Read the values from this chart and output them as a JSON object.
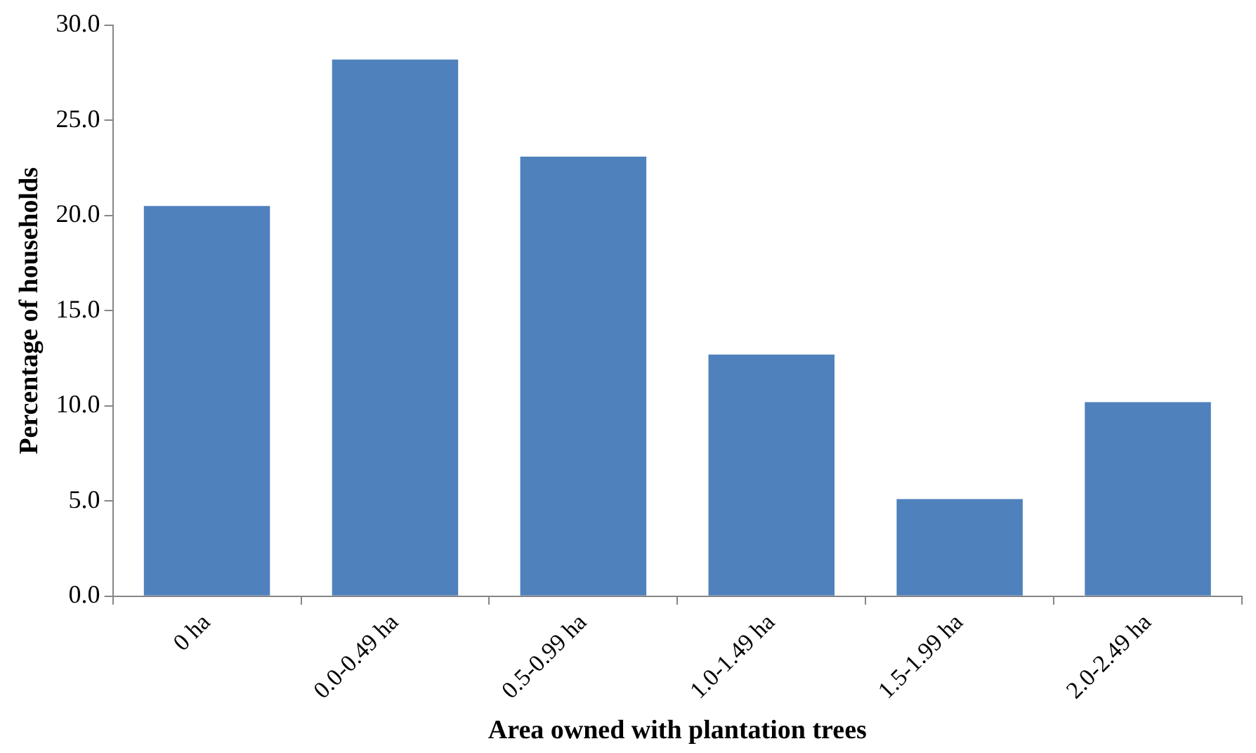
{
  "chart_data": {
    "type": "bar",
    "xlabel": "Area owned with plantation trees",
    "ylabel": "Percentage of households",
    "categories": [
      "0 ha",
      "0.0-0.49 ha",
      "0.5-0.99 ha",
      "1.0-1.49 ha",
      "1.5-1.99 ha",
      "2.0-2.49 ha"
    ],
    "values": [
      20.5,
      28.2,
      23.1,
      12.7,
      5.1,
      10.2
    ],
    "color": "#4f81bd",
    "ylim": [
      0,
      30
    ],
    "yticks": [
      {
        "value": 0,
        "label": "0.0"
      },
      {
        "value": 5,
        "label": "5.0"
      },
      {
        "value": 10,
        "label": "10.0"
      },
      {
        "value": 15,
        "label": "15.0"
      },
      {
        "value": 20,
        "label": "20.0"
      },
      {
        "value": 25,
        "label": "25.0"
      },
      {
        "value": 30,
        "label": "30.0"
      }
    ],
    "grid": false,
    "legend": false
  }
}
